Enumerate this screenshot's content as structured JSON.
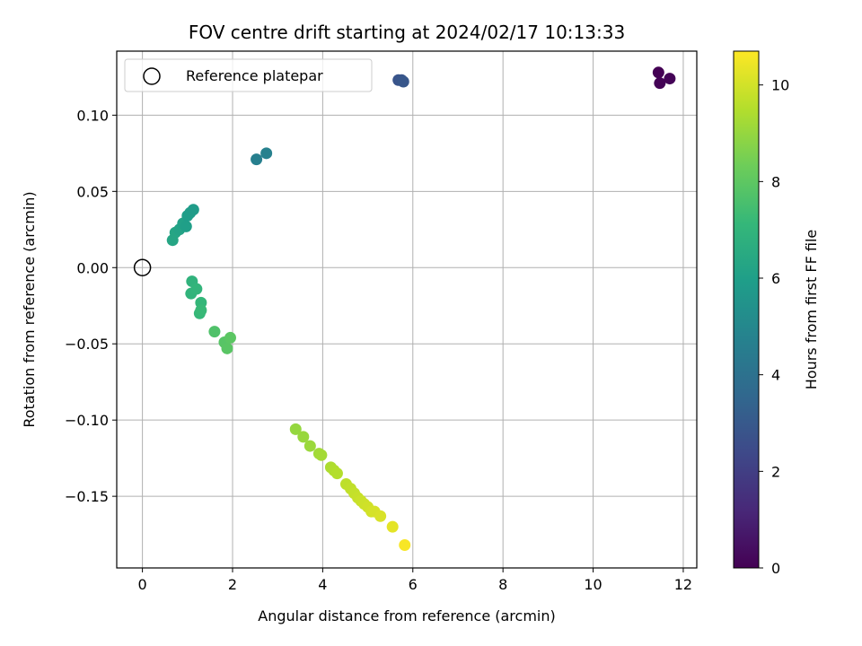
{
  "chart_data": {
    "type": "scatter",
    "title": "FOV centre drift starting at 2024/02/17 10:13:33",
    "xlabel": "Angular distance from reference (arcmin)",
    "ylabel": "Rotation from reference (arcmin)",
    "xlim": [
      -0.57,
      12.3
    ],
    "ylim": [
      -0.197,
      0.142
    ],
    "xticks": [
      0,
      2,
      4,
      6,
      8,
      10,
      12
    ],
    "yticks": [
      -0.15,
      -0.1,
      -0.05,
      0.0,
      0.05,
      0.1
    ],
    "xtick_labels": [
      "0",
      "2",
      "4",
      "6",
      "8",
      "10",
      "12"
    ],
    "ytick_labels": [
      "−0.15",
      "−0.10",
      "−0.05",
      "0.00",
      "0.05",
      "0.10"
    ],
    "grid": true,
    "legend": {
      "placement": "top-left",
      "entries": [
        "Reference platepar"
      ]
    },
    "colorbar": {
      "label": "Hours from first FF file",
      "colormap": "viridis",
      "range": [
        0,
        10.7
      ],
      "ticks": [
        0,
        2,
        4,
        6,
        8,
        10
      ],
      "tick_labels": [
        "0",
        "2",
        "4",
        "6",
        "8",
        "10"
      ]
    },
    "reference_point": {
      "x": 0,
      "y": 0
    },
    "points": [
      {
        "x": 11.45,
        "y": 0.128,
        "t": 0.0
      },
      {
        "x": 11.48,
        "y": 0.121,
        "t": 0.05
      },
      {
        "x": 11.7,
        "y": 0.124,
        "t": 0.1
      },
      {
        "x": 5.68,
        "y": 0.123,
        "t": 2.8
      },
      {
        "x": 5.75,
        "y": 0.123,
        "t": 2.85
      },
      {
        "x": 5.79,
        "y": 0.122,
        "t": 2.9
      },
      {
        "x": 2.53,
        "y": 0.071,
        "t": 4.6
      },
      {
        "x": 2.75,
        "y": 0.075,
        "t": 4.7
      },
      {
        "x": 0.67,
        "y": 0.018,
        "t": 6.3
      },
      {
        "x": 0.73,
        "y": 0.023,
        "t": 6.3
      },
      {
        "x": 0.82,
        "y": 0.025,
        "t": 6.2
      },
      {
        "x": 0.9,
        "y": 0.029,
        "t": 6.1
      },
      {
        "x": 0.97,
        "y": 0.027,
        "t": 6.0
      },
      {
        "x": 1.0,
        "y": 0.034,
        "t": 5.95
      },
      {
        "x": 1.06,
        "y": 0.036,
        "t": 5.9
      },
      {
        "x": 1.13,
        "y": 0.038,
        "t": 5.85
      },
      {
        "x": 1.1,
        "y": -0.009,
        "t": 6.9
      },
      {
        "x": 1.08,
        "y": -0.017,
        "t": 6.95
      },
      {
        "x": 1.2,
        "y": -0.014,
        "t": 7.0
      },
      {
        "x": 1.3,
        "y": -0.023,
        "t": 7.1
      },
      {
        "x": 1.27,
        "y": -0.03,
        "t": 7.15
      },
      {
        "x": 1.3,
        "y": -0.028,
        "t": 7.2
      },
      {
        "x": 1.6,
        "y": -0.042,
        "t": 7.7
      },
      {
        "x": 1.82,
        "y": -0.049,
        "t": 7.85
      },
      {
        "x": 1.88,
        "y": -0.053,
        "t": 7.9
      },
      {
        "x": 1.95,
        "y": -0.046,
        "t": 7.95
      },
      {
        "x": 3.4,
        "y": -0.106,
        "t": 9.0
      },
      {
        "x": 3.57,
        "y": -0.111,
        "t": 9.05
      },
      {
        "x": 3.72,
        "y": -0.117,
        "t": 9.1
      },
      {
        "x": 3.92,
        "y": -0.122,
        "t": 9.2
      },
      {
        "x": 3.97,
        "y": -0.123,
        "t": 9.25
      },
      {
        "x": 4.18,
        "y": -0.131,
        "t": 9.4
      },
      {
        "x": 4.25,
        "y": -0.133,
        "t": 9.45
      },
      {
        "x": 4.32,
        "y": -0.135,
        "t": 9.5
      },
      {
        "x": 4.52,
        "y": -0.142,
        "t": 9.65
      },
      {
        "x": 4.62,
        "y": -0.145,
        "t": 9.7
      },
      {
        "x": 4.7,
        "y": -0.148,
        "t": 9.75
      },
      {
        "x": 4.78,
        "y": -0.151,
        "t": 9.8
      },
      {
        "x": 4.85,
        "y": -0.153,
        "t": 9.85
      },
      {
        "x": 4.92,
        "y": -0.155,
        "t": 9.9
      },
      {
        "x": 5.0,
        "y": -0.157,
        "t": 9.95
      },
      {
        "x": 5.08,
        "y": -0.16,
        "t": 10.0
      },
      {
        "x": 5.15,
        "y": -0.16,
        "t": 10.05
      },
      {
        "x": 5.28,
        "y": -0.163,
        "t": 10.1
      },
      {
        "x": 5.55,
        "y": -0.17,
        "t": 10.3
      },
      {
        "x": 5.82,
        "y": -0.182,
        "t": 10.6
      }
    ]
  }
}
